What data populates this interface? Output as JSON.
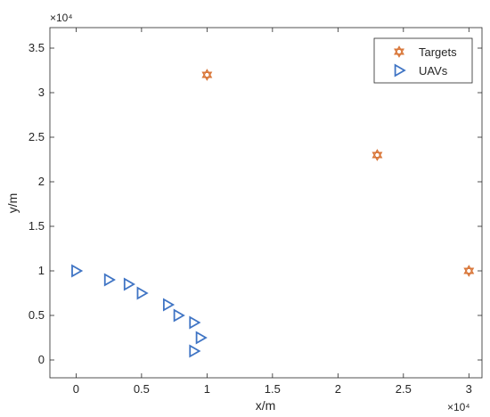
{
  "chart_data": {
    "type": "scatter",
    "xlabel": "x/m",
    "ylabel": "y/m",
    "x_exponent_label": "×10⁴",
    "y_exponent_label": "×10⁴",
    "xlim": [
      -0.2,
      3.1
    ],
    "ylim": [
      -0.2,
      3.73
    ],
    "xticks": [
      0,
      0.5,
      1,
      1.5,
      2,
      2.5,
      3
    ],
    "xtick_labels": [
      "0",
      "0.5",
      "1",
      "1.5",
      "2",
      "2.5",
      "3"
    ],
    "yticks": [
      0,
      0.5,
      1,
      1.5,
      2,
      2.5,
      3,
      3.5
    ],
    "ytick_labels": [
      "0",
      "0.5",
      "1",
      "1.5",
      "2",
      "2.5",
      "3",
      "3.5"
    ],
    "grid": false,
    "legend_position": "top-right",
    "series": [
      {
        "name": "Targets",
        "marker": "hexagram",
        "color": "#D9773A",
        "points": [
          [
            1.0,
            3.2
          ],
          [
            2.3,
            2.3
          ],
          [
            3.0,
            1.0
          ]
        ]
      },
      {
        "name": "UAVs",
        "marker": "triangle-right",
        "color": "#3F74C4",
        "points": [
          [
            0.0,
            1.0
          ],
          [
            0.25,
            0.9
          ],
          [
            0.4,
            0.85
          ],
          [
            0.5,
            0.75
          ],
          [
            0.7,
            0.62
          ],
          [
            0.78,
            0.5
          ],
          [
            0.9,
            0.42
          ],
          [
            0.95,
            0.25
          ],
          [
            0.9,
            0.1
          ]
        ]
      }
    ]
  }
}
